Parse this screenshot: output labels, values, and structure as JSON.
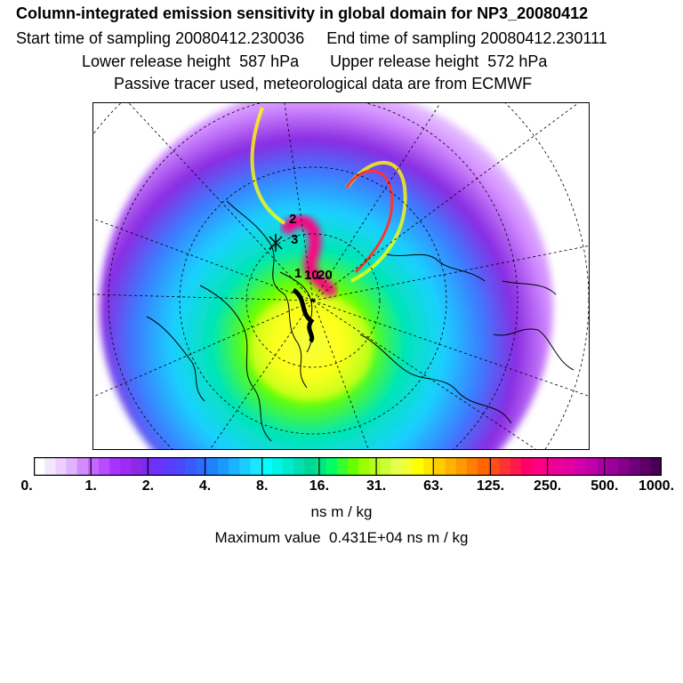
{
  "header": {
    "title": "Column-integrated emission sensitivity in global domain for NP3_20080412",
    "line2": "Start time of sampling 20080412.230036     End time of sampling 20080412.230111",
    "line3": "Lower release height  587 hPa       Upper release height  572 hPa",
    "line4": "Passive tracer used, meteorological data are from ECMWF"
  },
  "map": {
    "projection": "north-polar stereographic",
    "trajectory_labels": [
      "2",
      "3",
      "1",
      "10",
      "20"
    ]
  },
  "colorbar": {
    "tick_labels": [
      "0.",
      "1.",
      "2.",
      "4.",
      "8.",
      "16.",
      "31.",
      "63.",
      "125.",
      "250.",
      "500.",
      "1000."
    ],
    "colors": [
      "#ffffff",
      "#f5e6ff",
      "#eccfff",
      "#e0b3ff",
      "#d28cff",
      "#c466ff",
      "#b84cff",
      "#a733ff",
      "#9c2bf7",
      "#8a2be2",
      "#7a2bf0",
      "#6a31ff",
      "#5a3cff",
      "#4b47ff",
      "#3c59ff",
      "#2e6bff",
      "#1f82ff",
      "#1a99ff",
      "#1ab3ff",
      "#1acdff",
      "#1ae6ff",
      "#00ffff",
      "#00f5e6",
      "#00ebcc",
      "#00e0b3",
      "#00d699",
      "#00e680",
      "#00ff66",
      "#33ff33",
      "#66ff00",
      "#99ff00",
      "#b3ff1a",
      "#ccff33",
      "#e6ff4d",
      "#f2ff33",
      "#ffff00",
      "#ffe600",
      "#ffcc00",
      "#ffb300",
      "#ff9900",
      "#ff8000",
      "#ff6600",
      "#ff4d1a",
      "#ff3333",
      "#ff1a4d",
      "#ff0066",
      "#ff0080",
      "#f5008c",
      "#eb0099",
      "#e000a3",
      "#d100a8",
      "#c000a8",
      "#ad00a3",
      "#990099",
      "#85008a",
      "#70007a",
      "#5c0066",
      "#470052"
    ]
  },
  "unit": "ns m / kg",
  "maximum": "Maximum value  0.431E+04 ns m / kg"
}
